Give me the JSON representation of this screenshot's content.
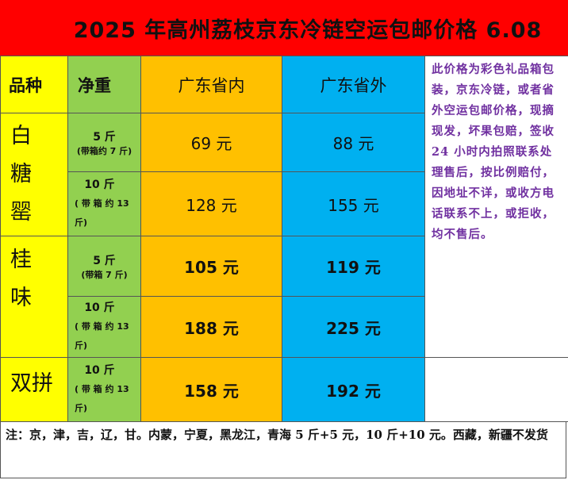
{
  "title": "2025 年高州荔枝京东冷链空运包邮价格 6.08",
  "headers": {
    "variety": "品种",
    "weight": "净重",
    "guangdong": "广东省内",
    "outside": "广东省外"
  },
  "note": "此价格为彩色礼品箱包装，京东冷链，或者省外空运包邮价格，现摘现发，坏果包赔，签收 24 小时内拍照联系处理售后，按比例赔付，因地址不详，或收方电话联系不上，或拒收，均不售后。",
  "varieties": [
    {
      "name_chars": [
        "白",
        "糖",
        "罂"
      ],
      "rows": [
        {
          "weight": "5 斤",
          "weight_note": "(带箱约 7 斤)",
          "guangdong": "69 元",
          "outside": "88 元"
        },
        {
          "weight": "10 斤",
          "weight_note": "( 带 箱 约 13 斤)",
          "guangdong": "128 元",
          "outside": "155 元"
        }
      ]
    },
    {
      "name_chars": [
        "桂",
        "味"
      ],
      "rows": [
        {
          "weight": "5 斤",
          "weight_note": "(带箱 7 斤)",
          "guangdong": "105 元",
          "outside": "119 元"
        },
        {
          "weight": "10 斤",
          "weight_note": "( 带 箱 约 13 斤)",
          "guangdong": "188 元",
          "outside": "225 元"
        }
      ]
    },
    {
      "name": "双拼",
      "rows": [
        {
          "weight": "10 斤",
          "weight_note": "( 带 箱 约 13 斤)",
          "guangdong": "158 元",
          "outside": "192 元"
        }
      ]
    }
  ],
  "footer": "注：京，津，吉，辽，甘。内蒙，宁夏，黑龙江，青海 5 斤+5 元，10 斤+10 元。西藏，新疆不发货"
}
